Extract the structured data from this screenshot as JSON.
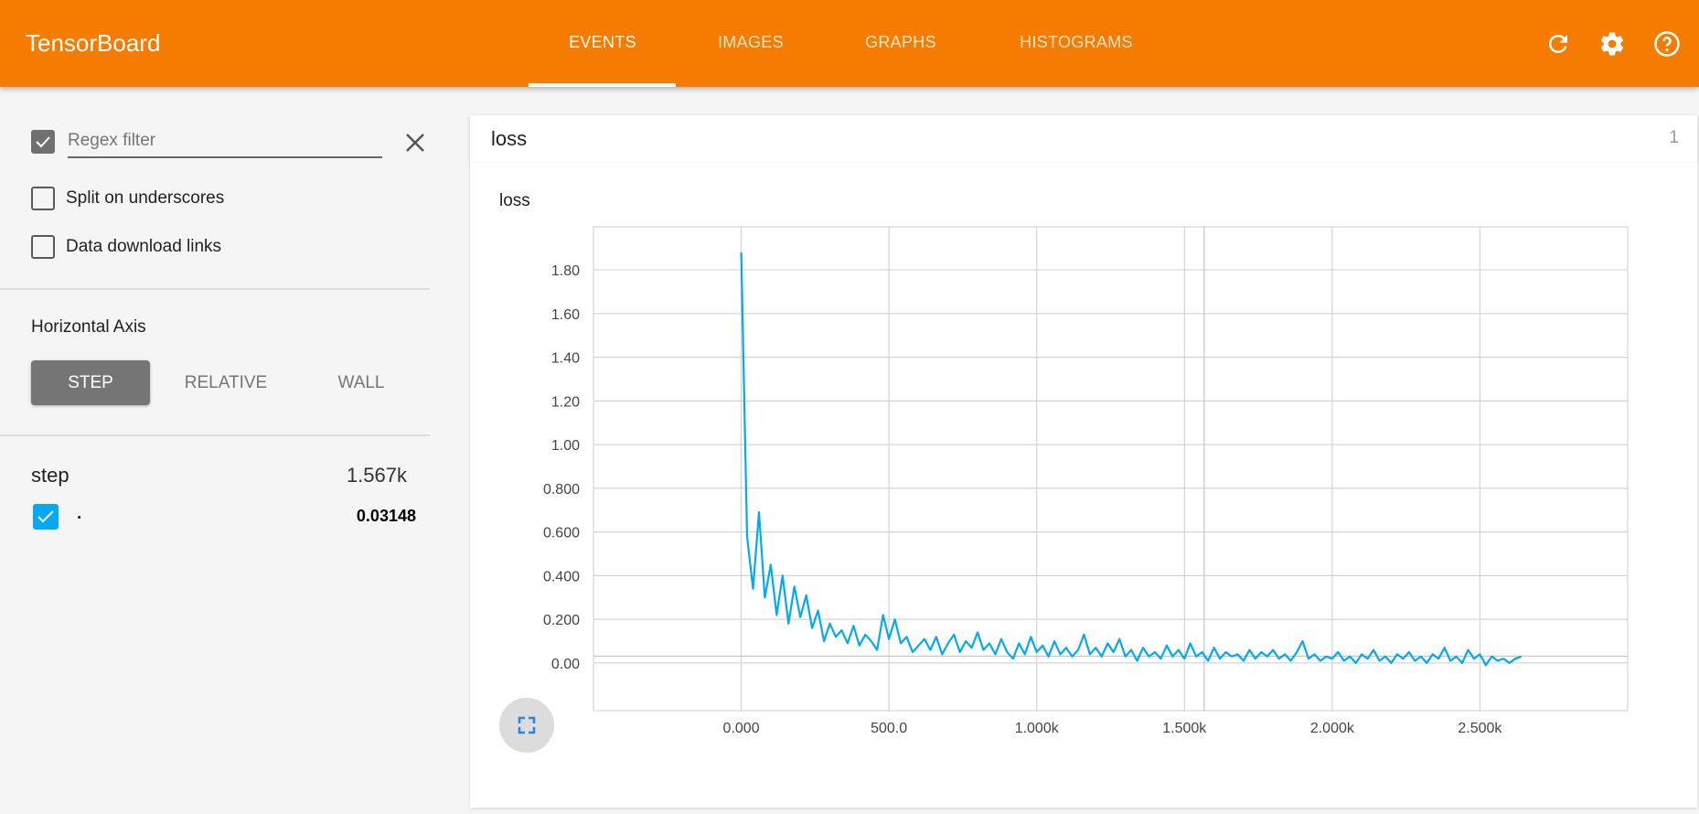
{
  "header": {
    "title": "TensorBoard",
    "tabs": [
      {
        "label": "EVENTS",
        "active": true
      },
      {
        "label": "IMAGES",
        "active": false
      },
      {
        "label": "GRAPHS",
        "active": false
      },
      {
        "label": "HISTOGRAMS",
        "active": false
      }
    ],
    "icons": [
      "refresh-icon",
      "settings-icon",
      "help-icon"
    ],
    "color": "#f57c00"
  },
  "sidebar": {
    "regex_filter": {
      "placeholder": "Regex filter",
      "value": "",
      "checked": true
    },
    "split_underscores": {
      "label": "Split on underscores",
      "checked": false
    },
    "data_download": {
      "label": "Data download links",
      "checked": false
    },
    "horizontal_axis": {
      "title": "Horizontal Axis",
      "options": [
        "STEP",
        "RELATIVE",
        "WALL"
      ],
      "selected": "STEP"
    },
    "tooltip": {
      "x_label": "step",
      "x_value": "1.567k",
      "runs": [
        {
          "name": ".",
          "value": "0.03148",
          "checked": true,
          "color": "#03a9f4"
        }
      ]
    }
  },
  "main": {
    "category": {
      "name": "loss",
      "count": "1"
    }
  },
  "chart_data": {
    "type": "line",
    "title": "loss",
    "xlabel": "",
    "ylabel": "",
    "xlim": [
      -500,
      3000
    ],
    "ylim": [
      -0.218,
      1.997
    ],
    "x_ticks": [
      0,
      500,
      1000,
      1500,
      2000,
      2500
    ],
    "x_tick_labels": [
      "0.000",
      "500.0",
      "1.000k",
      "1.500k",
      "2.000k",
      "2.500k"
    ],
    "y_ticks": [
      0,
      0.2,
      0.4,
      0.6,
      0.8,
      1.0,
      1.2,
      1.4,
      1.6,
      1.8
    ],
    "y_tick_labels": [
      "0.00",
      "0.200",
      "0.400",
      "0.600",
      "0.800",
      "1.00",
      "1.20",
      "1.40",
      "1.60",
      "1.80"
    ],
    "grid": true,
    "hover": {
      "step": 1567,
      "value": 0.03148
    },
    "series": [
      {
        "name": ".",
        "color": "#03a9f4",
        "x_start": 0,
        "x_step": 20,
        "values": [
          1.88,
          0.58,
          0.34,
          0.69,
          0.3,
          0.45,
          0.22,
          0.4,
          0.18,
          0.35,
          0.21,
          0.31,
          0.16,
          0.24,
          0.1,
          0.18,
          0.12,
          0.15,
          0.09,
          0.17,
          0.08,
          0.13,
          0.1,
          0.06,
          0.22,
          0.11,
          0.2,
          0.09,
          0.12,
          0.05,
          0.08,
          0.11,
          0.06,
          0.12,
          0.04,
          0.09,
          0.13,
          0.05,
          0.1,
          0.07,
          0.14,
          0.06,
          0.09,
          0.04,
          0.11,
          0.05,
          0.02,
          0.09,
          0.04,
          0.12,
          0.05,
          0.08,
          0.03,
          0.1,
          0.04,
          0.07,
          0.03,
          0.06,
          0.13,
          0.04,
          0.07,
          0.03,
          0.09,
          0.05,
          0.11,
          0.03,
          0.06,
          0.01,
          0.07,
          0.03,
          0.05,
          0.02,
          0.08,
          0.03,
          0.06,
          0.02,
          0.09,
          0.03,
          0.05,
          0.01,
          0.07,
          0.02,
          0.05,
          0.03,
          0.04,
          0.01,
          0.06,
          0.02,
          0.05,
          0.03,
          0.06,
          0.02,
          0.04,
          0.01,
          0.05,
          0.1,
          0.02,
          0.04,
          0.01,
          0.03,
          0.02,
          0.05,
          0.01,
          0.03,
          0.0,
          0.04,
          0.02,
          0.06,
          0.01,
          0.03,
          0.0,
          0.04,
          0.02,
          0.05,
          0.01,
          0.03,
          0.0,
          0.04,
          0.02,
          0.07,
          0.01,
          0.03,
          0.0,
          0.06,
          0.02,
          0.04,
          -0.01,
          0.03,
          0.01,
          0.02,
          0.0,
          0.02,
          0.03
        ]
      }
    ]
  }
}
